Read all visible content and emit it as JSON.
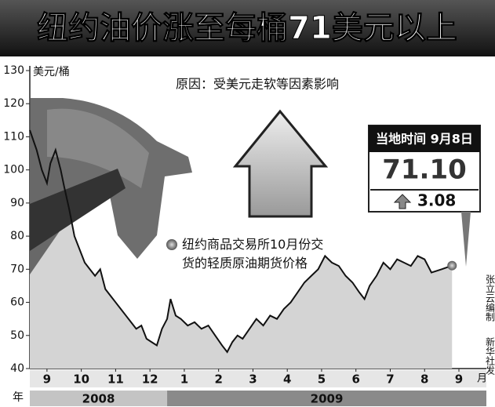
{
  "chart_data": {
    "type": "line",
    "title": "纽约油价涨至每桶71美元以上",
    "y_label": "美元/桶",
    "annotation": "原因：受美元走软等因素影响",
    "x_unit": "月",
    "year_label": "年",
    "credit": [
      "张立云编制",
      "新华社发"
    ],
    "years": [
      {
        "label": "2008",
        "from": 0,
        "to": 4
      },
      {
        "label": "2009",
        "from": 4,
        "to": 13.3
      }
    ],
    "xlim": [
      0,
      13.3
    ],
    "xticks": [
      {
        "value": 0.5,
        "label": "9"
      },
      {
        "value": 1.5,
        "label": "10"
      },
      {
        "value": 2.5,
        "label": "11"
      },
      {
        "value": 3.5,
        "label": "12"
      },
      {
        "value": 4.5,
        "label": "1"
      },
      {
        "value": 5.5,
        "label": "2"
      },
      {
        "value": 6.5,
        "label": "3"
      },
      {
        "value": 7.5,
        "label": "4"
      },
      {
        "value": 8.5,
        "label": "5"
      },
      {
        "value": 9.5,
        "label": "6"
      },
      {
        "value": 10.5,
        "label": "7"
      },
      {
        "value": 11.5,
        "label": "8"
      },
      {
        "value": 12.5,
        "label": "9"
      }
    ],
    "ylim": [
      40,
      130
    ],
    "yticks": [
      40,
      50,
      60,
      70,
      80,
      90,
      100,
      110,
      120,
      130
    ],
    "callout": {
      "date": "当地时间 9月8日",
      "price": {
        "value": 71.1,
        "label": "71.10"
      },
      "change": 3.08
    },
    "x": [
      0.0,
      0.2,
      0.35,
      0.5,
      0.6,
      0.75,
      0.9,
      1.0,
      1.15,
      1.3,
      1.45,
      1.6,
      1.75,
      1.9,
      2.05,
      2.2,
      2.35,
      2.5,
      2.65,
      2.8,
      2.95,
      3.1,
      3.25,
      3.4,
      3.55,
      3.7,
      3.85,
      4.0,
      4.1,
      4.25,
      4.4,
      4.6,
      4.8,
      5.0,
      5.2,
      5.4,
      5.6,
      5.75,
      5.9,
      6.05,
      6.2,
      6.4,
      6.6,
      6.8,
      7.0,
      7.2,
      7.4,
      7.6,
      7.8,
      8.0,
      8.2,
      8.4,
      8.6,
      8.8,
      9.0,
      9.2,
      9.4,
      9.6,
      9.75,
      9.9,
      10.1,
      10.3,
      10.5,
      10.7,
      10.9,
      11.1,
      11.3,
      11.5,
      11.7,
      12.0,
      12.3
    ],
    "series": [
      {
        "name": "纽约商品交易所10月份交货的轻质原油期货价格",
        "color": "#111111",
        "values": [
          112,
          106,
          100,
          96,
          102,
          106,
          100,
          95,
          88,
          80,
          76,
          72,
          70,
          68,
          70,
          64,
          62,
          60,
          58,
          56,
          54,
          52,
          53,
          49,
          48,
          47,
          52,
          55,
          61,
          56,
          55,
          53,
          54,
          52,
          53,
          50,
          47,
          45,
          48,
          50,
          49,
          52,
          55,
          53,
          56,
          55,
          58,
          60,
          63,
          66,
          68,
          70,
          74,
          72,
          71,
          68,
          66,
          63,
          61,
          65,
          68,
          72,
          70,
          73,
          72,
          71,
          74,
          73,
          69,
          70,
          71.1
        ]
      }
    ]
  }
}
